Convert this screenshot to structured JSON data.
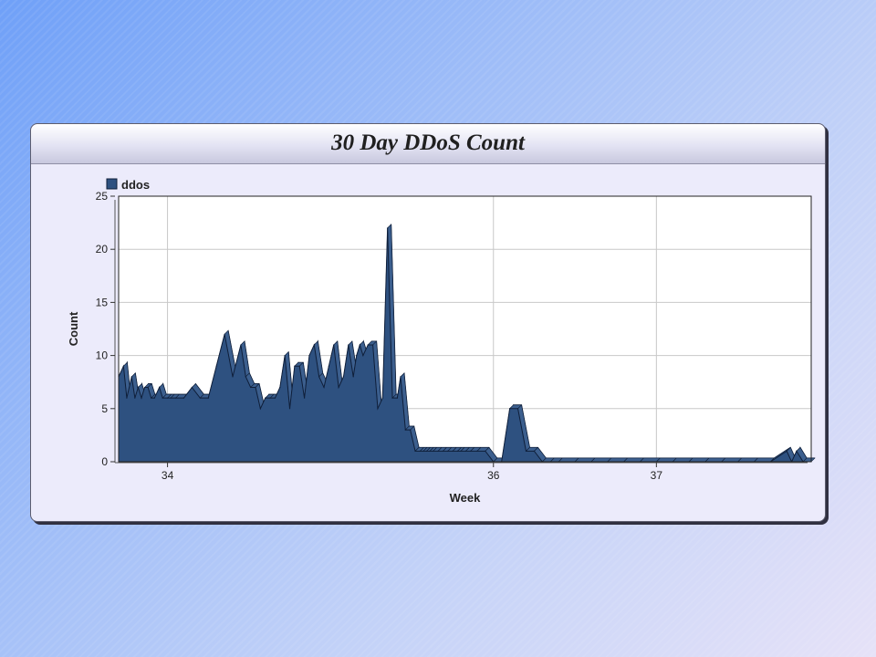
{
  "chart_data": {
    "type": "area",
    "title": "30 Day DDoS Count",
    "xlabel": "Week",
    "ylabel": "Count",
    "ylim": [
      0,
      25
    ],
    "yticks": [
      0,
      5,
      10,
      15,
      20,
      25
    ],
    "xlim": [
      33.7,
      37.95
    ],
    "xticks": [
      34,
      36,
      37
    ],
    "grid": true,
    "legend_position": "top-left",
    "colors": {
      "fill": "#2e5180",
      "edge": "#0f1f3a"
    },
    "series": [
      {
        "name": "ddos",
        "x": [
          33.7,
          33.73,
          33.75,
          33.78,
          33.8,
          33.82,
          33.84,
          33.86,
          33.88,
          33.9,
          33.92,
          33.95,
          33.97,
          34.0,
          34.02,
          34.05,
          34.1,
          34.15,
          34.2,
          34.25,
          34.3,
          34.35,
          34.4,
          34.45,
          34.48,
          34.51,
          34.54,
          34.57,
          34.6,
          34.63,
          34.66,
          34.69,
          34.72,
          34.75,
          34.78,
          34.81,
          34.84,
          34.87,
          34.9,
          34.93,
          34.96,
          34.99,
          35.02,
          35.05,
          35.08,
          35.11,
          35.14,
          35.16,
          35.18,
          35.2,
          35.23,
          35.26,
          35.29,
          35.32,
          35.35,
          35.38,
          35.41,
          35.43,
          35.46,
          35.49,
          35.52,
          35.55,
          35.57,
          35.59,
          35.61,
          35.63,
          35.66,
          35.69,
          35.72,
          35.75,
          35.78,
          35.8,
          35.83,
          35.86,
          35.9,
          35.95,
          36.0,
          36.05,
          36.1,
          36.15,
          36.2,
          36.25,
          36.3,
          36.35,
          36.4,
          36.5,
          36.6,
          36.7,
          36.8,
          36.9,
          37.0,
          37.1,
          37.2,
          37.3,
          37.4,
          37.5,
          37.6,
          37.7,
          37.8,
          37.83,
          37.86,
          37.9,
          37.95
        ],
        "y": [
          8,
          9,
          6,
          8,
          6,
          7,
          6,
          7,
          7,
          6,
          6,
          7,
          6,
          6,
          6,
          6,
          6,
          7,
          6,
          6,
          9,
          12,
          8,
          11,
          8,
          7,
          7,
          5,
          6,
          6,
          6,
          7,
          10,
          5,
          9,
          9,
          6,
          10,
          11,
          8,
          7,
          9,
          11,
          7,
          8,
          11,
          8,
          10,
          11,
          10,
          11,
          11,
          5,
          6,
          22,
          6,
          6,
          8,
          3,
          3,
          1,
          1,
          1,
          1,
          1,
          1,
          1,
          1,
          1,
          1,
          1,
          1,
          1,
          1,
          1,
          1,
          0,
          0,
          5,
          5,
          1,
          1,
          0,
          0,
          0,
          0,
          0,
          0,
          0,
          0,
          0,
          0,
          0,
          0,
          0,
          0,
          0,
          0,
          1,
          0,
          1,
          0,
          0
        ]
      }
    ]
  }
}
